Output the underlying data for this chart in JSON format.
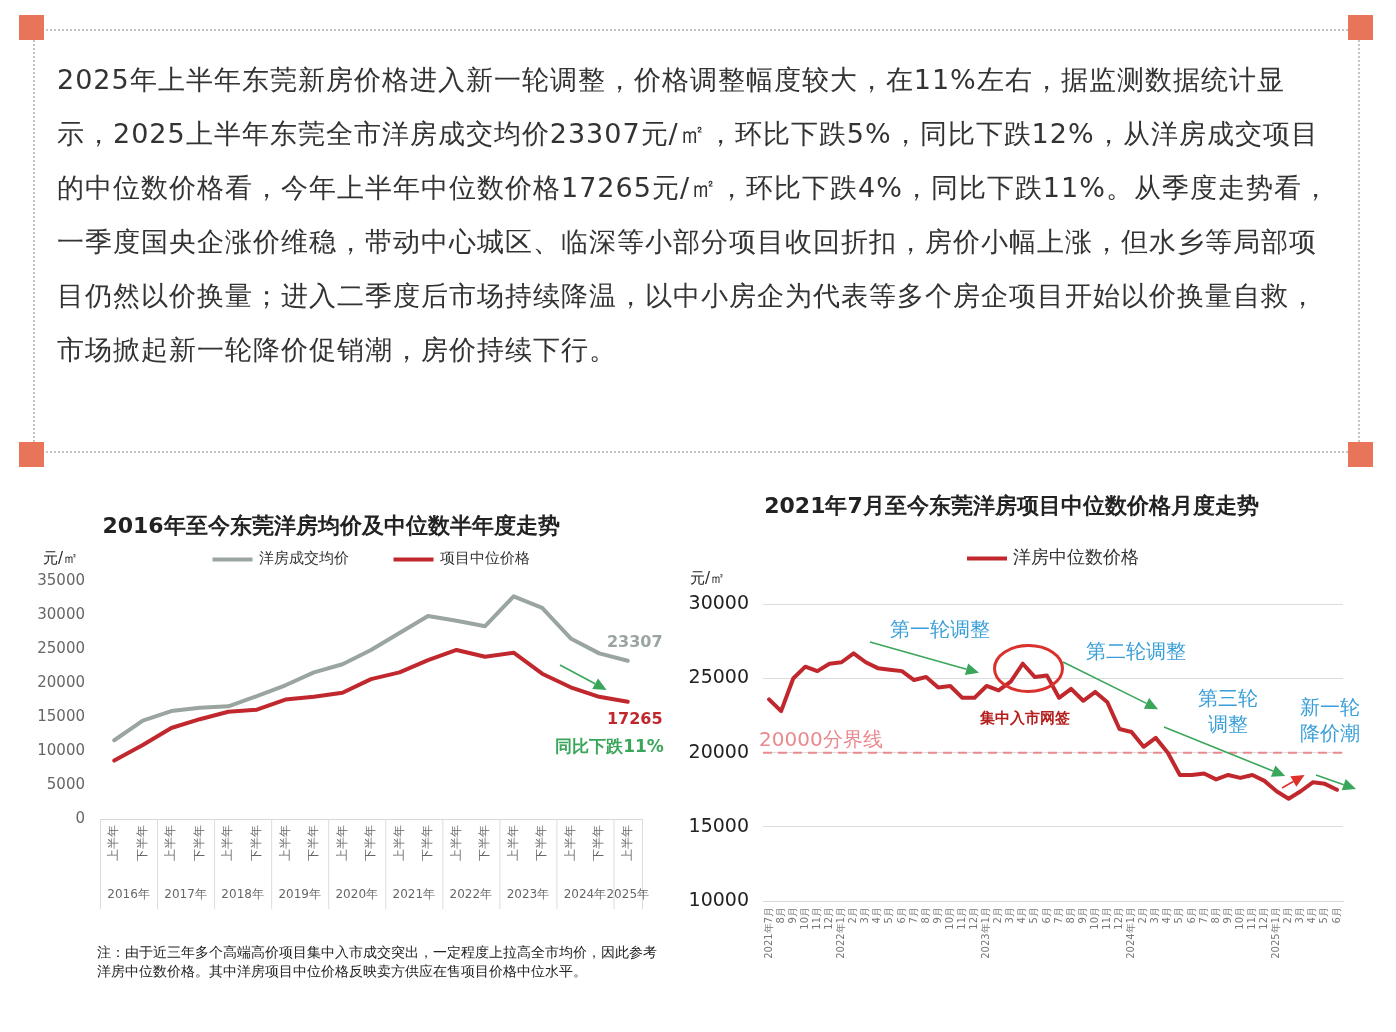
{
  "chart_data": [
    {
      "type": "other",
      "annotations": [
        "2025年上半年东莞新房价格进入新一轮调整，价格调整幅度较大，在11%左右，据监测数据统计显示，2025上半年东莞全市洋房成交均价23307元/㎡，环比下跌5%，同比下跌12%，从洋房成交项目的中位数价格看，今年上半年中位数价格17265元/㎡，环比下跌4%，同比下跌11%。从季度走势看，一季度国央企涨价维稳，带动中心城区、临深等小部分项目收回折扣，房价小幅上涨，但水乡等局部项目仍然以价换量；进入二季度后市场持续降温，以中小房企为代表等多个房企项目开始以价换量自救，市场掀起新一轮降价促销潮，房价持续下行。"
      ]
    },
    {
      "type": "line",
      "title": "2016年至今东莞洋房均价及中位数半年度走势",
      "ylabel": "元/㎡",
      "categories": [
        "上半年",
        "下半年",
        "上半年",
        "下半年",
        "上半年",
        "下半年",
        "上半年",
        "下半年",
        "上半年",
        "下半年",
        "上半年",
        "下半年",
        "上半年",
        "下半年",
        "上半年",
        "下半年",
        "上半年",
        "下半年",
        "上半年"
      ],
      "series": [
        {
          "name": "洋房成交均价",
          "color": "#9aa5a0",
          "values": [
            11600,
            14500,
            15900,
            16400,
            16600,
            18100,
            19700,
            21600,
            22800,
            24900,
            27400,
            29900,
            29200,
            28400,
            32800,
            31100,
            26600,
            24400,
            23307
          ],
          "value_labels": [
            null,
            null,
            null,
            null,
            null,
            null,
            null,
            null,
            null,
            null,
            null,
            null,
            null,
            null,
            null,
            null,
            null,
            null,
            "23307"
          ]
        },
        {
          "name": "项目中位价格",
          "color": "#c0282d",
          "values": [
            8600,
            10900,
            13400,
            14700,
            15800,
            16100,
            17600,
            18000,
            18600,
            20600,
            21600,
            23400,
            24900,
            23900,
            24500,
            21400,
            19400,
            18000,
            17265
          ],
          "value_labels": [
            null,
            null,
            null,
            null,
            null,
            null,
            null,
            null,
            null,
            null,
            null,
            null,
            null,
            null,
            null,
            null,
            null,
            null,
            "17265"
          ]
        }
      ],
      "ylim": [
        0,
        35000
      ],
      "yticks": [
        0,
        5000,
        10000,
        15000,
        20000,
        25000,
        30000,
        35000
      ],
      "legend": "top",
      "marker": "none",
      "annotations": [
        "2016年",
        "2017年",
        "2018年",
        "2019年",
        "2020年",
        "2021年",
        "2022年",
        "2023年",
        "2024年",
        "2025年",
        "同比下跌11%",
        "注：由于近三年多个高端高价项目集中入市成交突出，一定程度上拉高全市均价，因此参考洋房中位数价格。其中洋房项目中位价格反映卖方供应在售项目价格中位水平。"
      ]
    },
    {
      "type": "line",
      "title": "2021年7月至今东莞洋房项目中位数价格月度走势",
      "ylabel": "元/㎡",
      "x": [
        "2021-07",
        "2021-08",
        "2021-09",
        "2021-10",
        "2021-11",
        "2021-12",
        "2022-01",
        "2022-02",
        "2022-03",
        "2022-04",
        "2022-05",
        "2022-06",
        "2022-07",
        "2022-08",
        "2022-09",
        "2022-10",
        "2022-11",
        "2022-12",
        "2023-01",
        "2023-02",
        "2023-03",
        "2023-04",
        "2023-05",
        "2023-06",
        "2023-07",
        "2023-08",
        "2023-09",
        "2023-10",
        "2023-11",
        "2023-12",
        "2024-01",
        "2024-02",
        "2024-03",
        "2024-04",
        "2024-05",
        "2024-06",
        "2024-07",
        "2024-08",
        "2024-09",
        "2024-10",
        "2024-11",
        "2024-12",
        "2025-01",
        "2025-02",
        "2025-03",
        "2025-04",
        "2025-05",
        "2025-06"
      ],
      "xlim": [
        "2021-06-16",
        "2025-06-16"
      ],
      "xticks": [
        {
          "value": "2021-07",
          "label": "2021年7月"
        },
        {
          "value": "2021-08",
          "label": "8月"
        },
        {
          "value": "2021-09",
          "label": "9月"
        },
        {
          "value": "2021-10",
          "label": "10月"
        },
        {
          "value": "2021-11",
          "label": "11月"
        },
        {
          "value": "2021-12",
          "label": "12月"
        },
        {
          "value": "2022-01",
          "label": "2022年1月"
        },
        {
          "value": "2022-02",
          "label": "2月"
        },
        {
          "value": "2022-03",
          "label": "3月"
        },
        {
          "value": "2022-04",
          "label": "4月"
        },
        {
          "value": "2022-05",
          "label": "5月"
        },
        {
          "value": "2022-06",
          "label": "6月"
        },
        {
          "value": "2022-07",
          "label": "7月"
        },
        {
          "value": "2022-08",
          "label": "8月"
        },
        {
          "value": "2022-09",
          "label": "9月"
        },
        {
          "value": "2022-10",
          "label": "10月"
        },
        {
          "value": "2022-11",
          "label": "11月"
        },
        {
          "value": "2022-12",
          "label": "12月"
        },
        {
          "value": "2023-01",
          "label": "2023年1月"
        },
        {
          "value": "2023-02",
          "label": "2月"
        },
        {
          "value": "2023-03",
          "label": "3月"
        },
        {
          "value": "2023-04",
          "label": "4月"
        },
        {
          "value": "2023-05",
          "label": "5月"
        },
        {
          "value": "2023-06",
          "label": "6月"
        },
        {
          "value": "2023-07",
          "label": "7月"
        },
        {
          "value": "2023-08",
          "label": "8月"
        },
        {
          "value": "2023-09",
          "label": "9月"
        },
        {
          "value": "2023-10",
          "label": "10月"
        },
        {
          "value": "2023-11",
          "label": "11月"
        },
        {
          "value": "2023-12",
          "label": "12月"
        },
        {
          "value": "2024-01",
          "label": "2024年1月"
        },
        {
          "value": "2024-02",
          "label": "2月"
        },
        {
          "value": "2024-03",
          "label": "3月"
        },
        {
          "value": "2024-04",
          "label": "4月"
        },
        {
          "value": "2024-05",
          "label": "5月"
        },
        {
          "value": "2024-06",
          "label": "6月"
        },
        {
          "value": "2024-07",
          "label": "7月"
        },
        {
          "value": "2024-08",
          "label": "8月"
        },
        {
          "value": "2024-09",
          "label": "9月"
        },
        {
          "value": "2024-10",
          "label": "10月"
        },
        {
          "value": "2024-11",
          "label": "11月"
        },
        {
          "value": "2024-12",
          "label": "12月"
        },
        {
          "value": "2025-01",
          "label": "2025年1月"
        },
        {
          "value": "2025-02",
          "label": "2月"
        },
        {
          "value": "2025-03",
          "label": "3月"
        },
        {
          "value": "2025-04",
          "label": "4月"
        },
        {
          "value": "2025-05",
          "label": "5月"
        },
        {
          "value": "2025-06",
          "label": "6月"
        }
      ],
      "series": [
        {
          "name": "洋房中位数价格",
          "color": "#c0282d",
          "values": [
            23600,
            22800,
            25000,
            25800,
            25500,
            26000,
            26100,
            26700,
            26100,
            25700,
            25600,
            25500,
            24900,
            25100,
            24400,
            24500,
            23700,
            23700,
            24500,
            24200,
            24800,
            26000,
            25100,
            25200,
            23700,
            24300,
            23500,
            24100,
            23400,
            21600,
            21400,
            20400,
            21000,
            20000,
            18500,
            18500,
            18600,
            18200,
            18500,
            18300,
            18500,
            18100,
            17400,
            16900,
            17400,
            18000,
            17900,
            17500
          ]
        }
      ],
      "ylim": [
        10000,
        30000
      ],
      "yticks": [
        10000,
        15000,
        20000,
        25000,
        30000
      ],
      "grid": "y",
      "legend": "top",
      "marker": "none",
      "ref_lines": [
        {
          "axis": "y",
          "value": 20000,
          "label": "20000分界线",
          "color": "#e98a8f",
          "line_style": "dashed"
        }
      ],
      "annotations": [
        "第一轮调整",
        "第二轮调整",
        "第三轮调整",
        "新一轮降价潮",
        "集中入市网签"
      ]
    }
  ]
}
